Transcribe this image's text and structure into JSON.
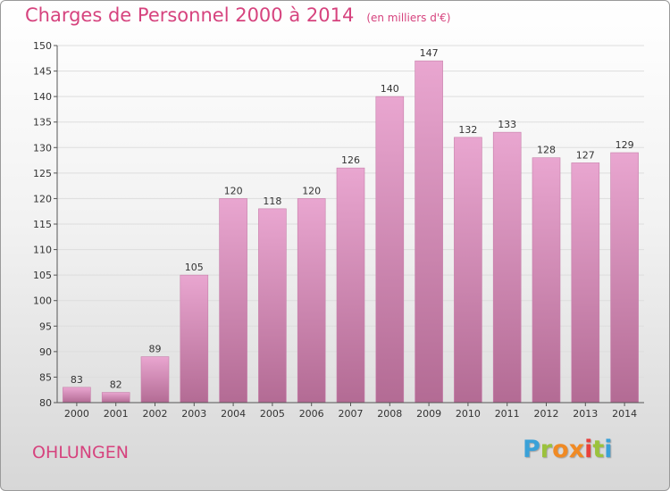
{
  "title": "Charges de Personnel 2000 à 2014",
  "subtitle": "(en milliers d'€)",
  "commune": "OHLUNGEN",
  "logo": {
    "text": "Proxiti",
    "letters": [
      "P",
      "r",
      "o",
      "x",
      "i",
      "t",
      "i"
    ],
    "colors": [
      "#3aa1d8",
      "#9bc23c",
      "#f08a24",
      "#f08a24",
      "#e8413c",
      "#9bc23c",
      "#3aa1d8"
    ]
  },
  "colors": {
    "title": "#d6437e",
    "bar_top": "#e9a6d0",
    "bar_bottom": "#b36b94",
    "bar_edge": "#c77faa",
    "axis": "#555555",
    "grid": "#dddddd"
  },
  "chart_data": {
    "type": "bar",
    "categories": [
      "2000",
      "2001",
      "2002",
      "2003",
      "2004",
      "2005",
      "2006",
      "2007",
      "2008",
      "2009",
      "2010",
      "2011",
      "2012",
      "2013",
      "2014"
    ],
    "values": [
      83,
      82,
      89,
      105,
      120,
      118,
      120,
      126,
      140,
      147,
      132,
      133,
      128,
      127,
      129
    ],
    "ylim": [
      80,
      150
    ],
    "yticks": [
      80,
      85,
      90,
      95,
      100,
      105,
      110,
      115,
      120,
      125,
      130,
      135,
      140,
      145,
      150
    ],
    "grid": true,
    "data_labels": true
  }
}
